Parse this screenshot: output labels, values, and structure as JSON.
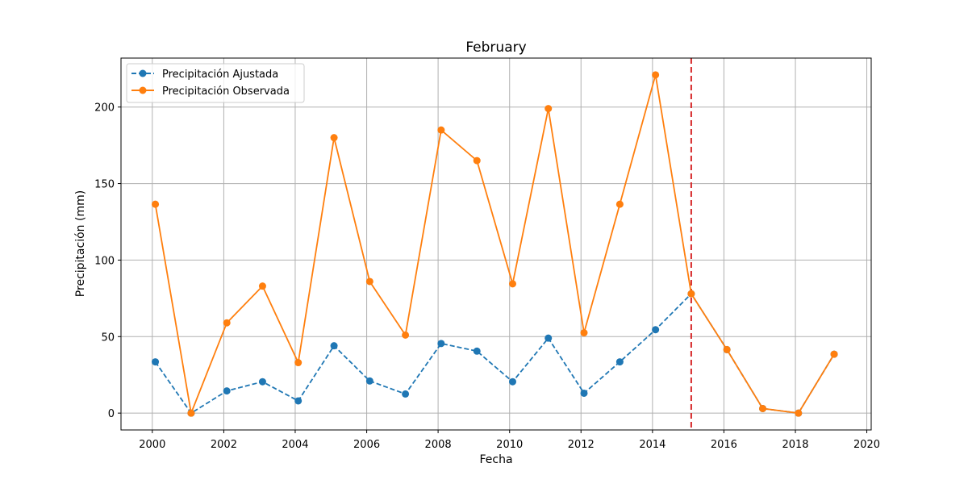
{
  "chart_data": {
    "type": "line",
    "title": "February",
    "xlabel": "Fecha",
    "ylabel": "Precipitación (mm)",
    "xlim": [
      "1999-02-15",
      "2020-02-15"
    ],
    "ylim": [
      -11,
      232
    ],
    "xticks": [
      "2000",
      "2002",
      "2004",
      "2006",
      "2008",
      "2010",
      "2012",
      "2014",
      "2016",
      "2018",
      "2020"
    ],
    "yticks": [
      0,
      50,
      100,
      150,
      200
    ],
    "grid": true,
    "legend_position": "top-left",
    "x": [
      "2000-02-01",
      "2001-02-01",
      "2002-02-01",
      "2003-02-01",
      "2004-02-01",
      "2005-02-01",
      "2006-02-01",
      "2007-02-01",
      "2008-02-01",
      "2009-02-01",
      "2010-02-01",
      "2011-02-01",
      "2012-02-01",
      "2013-02-01",
      "2014-02-01",
      "2015-02-01",
      "2016-02-01",
      "2017-02-01",
      "2018-02-01",
      "2019-02-01"
    ],
    "series": [
      {
        "name": "Precipitación Ajustada",
        "color": "#1f77b4",
        "linestyle": "dashed",
        "marker": "circle",
        "values": [
          33.5,
          0.0,
          14.5,
          20.5,
          8.0,
          44.0,
          21.0,
          12.5,
          45.5,
          40.5,
          20.5,
          49.0,
          13.0,
          33.5,
          54.5,
          78.0,
          41.5,
          3.0,
          0.0,
          38.5
        ]
      },
      {
        "name": "Precipitación Observada",
        "color": "#ff7f0e",
        "linestyle": "solid",
        "marker": "circle",
        "values": [
          136.5,
          0.0,
          59.0,
          83.0,
          33.0,
          180.0,
          86.0,
          51.0,
          185.0,
          165.0,
          84.5,
          199.0,
          52.5,
          136.5,
          221.0,
          78.0,
          41.5,
          3.0,
          0.0,
          38.5
        ]
      }
    ],
    "annotations": [
      {
        "type": "vline",
        "x": "2015-02-01",
        "color": "#d62728",
        "linestyle": "dashed"
      }
    ]
  }
}
